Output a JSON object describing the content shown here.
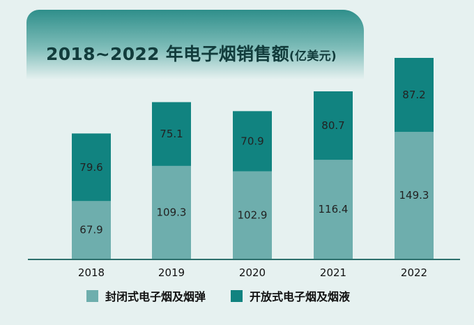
{
  "chart_data": {
    "type": "bar",
    "stacked": true,
    "title": "2018~2022 年电子烟销售额",
    "unit": "(亿美元)",
    "categories": [
      "2018",
      "2019",
      "2020",
      "2021",
      "2022"
    ],
    "series": [
      {
        "name": "封闭式电子烟及烟弹",
        "values": [
          67.9,
          109.3,
          102.9,
          116.4,
          149.3
        ],
        "color": "#6eaead"
      },
      {
        "name": "开放式电子烟及烟液",
        "values": [
          79.6,
          75.1,
          70.9,
          80.7,
          87.2
        ],
        "color": "#118380"
      }
    ],
    "xlabel": "",
    "ylabel": "",
    "ylim": [
      0,
      236.5
    ],
    "grid": false,
    "legend": "bottom"
  },
  "colors": {
    "axis": "#2c6f6c",
    "label_text": "#222222",
    "background": "#e6f1f0"
  }
}
